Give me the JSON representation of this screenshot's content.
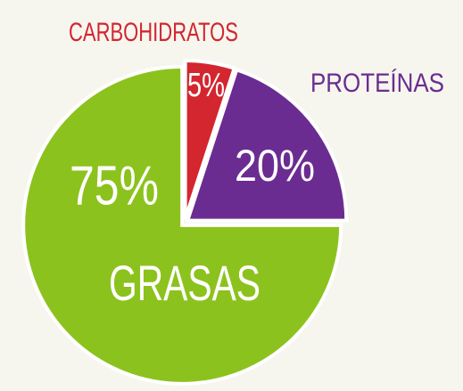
{
  "chart_data": {
    "type": "pie",
    "categories": [
      "CARBOHIDRATOS",
      "PROTEÍNAS",
      "GRASAS"
    ],
    "values": [
      5,
      20,
      75
    ],
    "value_labels": [
      "5%",
      "20%",
      "75%"
    ],
    "colors": [
      "#d3262f",
      "#6b2c91",
      "#8cc21d"
    ]
  }
}
